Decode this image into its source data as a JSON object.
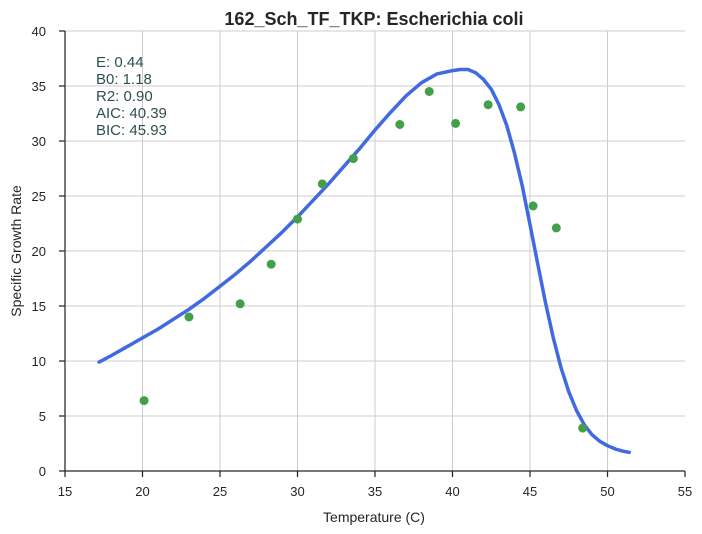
{
  "chart_data": {
    "type": "scatter",
    "title": "162_Sch_TF_TKP: Escherichia coli",
    "xlabel": "Temperature (C)",
    "ylabel": "Specific Growth Rate",
    "xlim": [
      15,
      55
    ],
    "ylim": [
      0,
      40
    ],
    "xticks": [
      "15",
      "20",
      "25",
      "30",
      "35",
      "40",
      "45",
      "50",
      "55"
    ],
    "yticks": [
      "0",
      "5",
      "10",
      "15",
      "20",
      "25",
      "30",
      "35",
      "40"
    ],
    "grid": true,
    "colors": {
      "points": "#44a048",
      "curve": "#4169e1"
    },
    "series": [
      {
        "kind": "points",
        "x": [
          20.1,
          23.0,
          26.3,
          28.3,
          30.0,
          31.6,
          33.6,
          36.6,
          38.5,
          40.2,
          42.3,
          44.4,
          45.2,
          46.7,
          48.4
        ],
        "y": [
          6.4,
          14.0,
          15.2,
          18.8,
          22.9,
          26.1,
          28.4,
          31.5,
          34.5,
          31.6,
          33.3,
          33.1,
          24.1,
          22.1,
          3.9
        ]
      },
      {
        "kind": "fitted-curve",
        "x": [
          17.2,
          18.0,
          19.0,
          20.0,
          21.0,
          22.0,
          23.0,
          24.0,
          25.0,
          26.0,
          27.0,
          28.0,
          29.0,
          30.0,
          31.0,
          32.0,
          33.0,
          34.0,
          35.0,
          36.0,
          37.0,
          38.0,
          39.0,
          40.0,
          40.5,
          41.0,
          41.5,
          42.0,
          42.5,
          43.0,
          43.5,
          44.0,
          44.5,
          45.0,
          45.5,
          46.0,
          46.5,
          47.0,
          47.5,
          48.0,
          48.5,
          49.0,
          49.5,
          50.0,
          50.5,
          51.0,
          51.4
        ],
        "y": [
          9.9,
          10.5,
          11.3,
          12.1,
          12.9,
          13.8,
          14.7,
          15.7,
          16.8,
          17.9,
          19.1,
          20.4,
          21.7,
          23.1,
          24.6,
          26.1,
          27.7,
          29.3,
          31.0,
          32.6,
          34.1,
          35.3,
          36.1,
          36.4,
          36.5,
          36.5,
          36.2,
          35.6,
          34.7,
          33.3,
          31.4,
          28.9,
          25.9,
          22.4,
          18.8,
          15.3,
          12.1,
          9.4,
          7.2,
          5.5,
          4.2,
          3.3,
          2.7,
          2.3,
          2.0,
          1.8,
          1.7
        ]
      }
    ],
    "stats": [
      {
        "label": "E:",
        "value": "0.44"
      },
      {
        "label": "B0:",
        "value": "1.18"
      },
      {
        "label": "R2:",
        "value": "0.90"
      },
      {
        "label": "AIC:",
        "value": "40.39"
      },
      {
        "label": "BIC:",
        "value": "45.93"
      }
    ]
  }
}
